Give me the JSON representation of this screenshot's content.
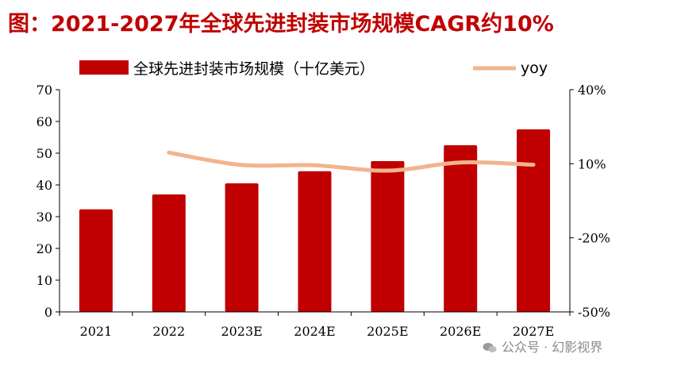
{
  "title": "图：2021-2027年全球先进封装市场规模CAGR约10%",
  "watermark": "公众号 · 幻影视界",
  "colors": {
    "bar": "#c00000",
    "line": "#f2b48e",
    "title": "#c00000",
    "axis": "#000000"
  },
  "chart_data": {
    "type": "bar",
    "categories": [
      "2021",
      "2022",
      "2023E",
      "2024E",
      "2025E",
      "2026E",
      "2027E"
    ],
    "series": [
      {
        "name": "全球先进封装市场规模（十亿美元）",
        "type": "bar",
        "axis": "left",
        "values": [
          32.3,
          37.0,
          40.5,
          44.3,
          47.5,
          52.5,
          57.5
        ]
      },
      {
        "name": "yoy",
        "type": "line",
        "axis": "right",
        "values": [
          null,
          14.5,
          9.5,
          9.4,
          7.2,
          10.5,
          9.6
        ]
      }
    ],
    "y_left": {
      "ylim": [
        0,
        70
      ],
      "ticks": [
        0,
        10,
        20,
        30,
        40,
        50,
        60,
        70
      ],
      "tick_labels": [
        "0",
        "10",
        "20",
        "30",
        "40",
        "50",
        "60",
        "70"
      ]
    },
    "y_right": {
      "ylim": [
        -50,
        40
      ],
      "ticks": [
        -50,
        -20,
        10,
        40
      ],
      "tick_labels": [
        "-50%",
        "-20%",
        "10%",
        "40%"
      ]
    },
    "legend": {
      "placement": "top",
      "entries": [
        "全球先进封装市场规模（十亿美元）",
        "yoy"
      ]
    },
    "grid": false
  }
}
